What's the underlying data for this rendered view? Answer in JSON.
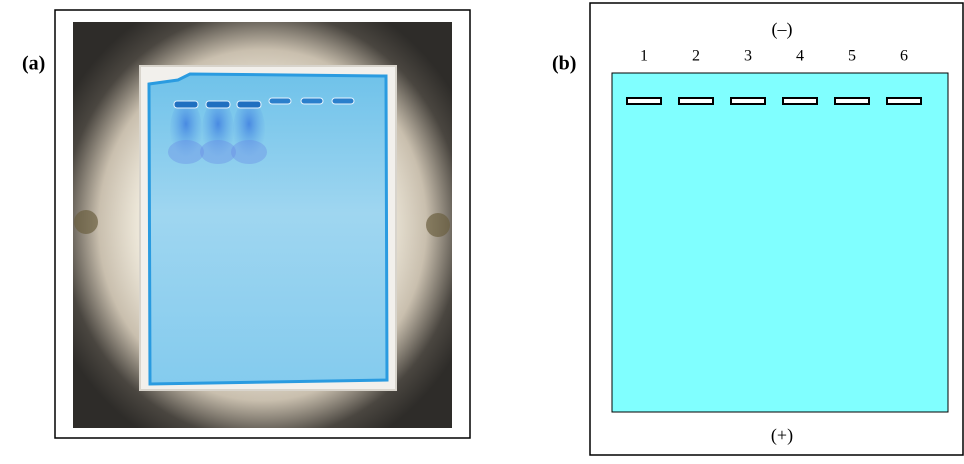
{
  "panel_a": {
    "label": "(a)"
  },
  "panel_b": {
    "label": "(b)",
    "cathode": "(–)",
    "anode": "(+)",
    "lanes": [
      "1",
      "2",
      "3",
      "4",
      "5",
      "6"
    ]
  }
}
